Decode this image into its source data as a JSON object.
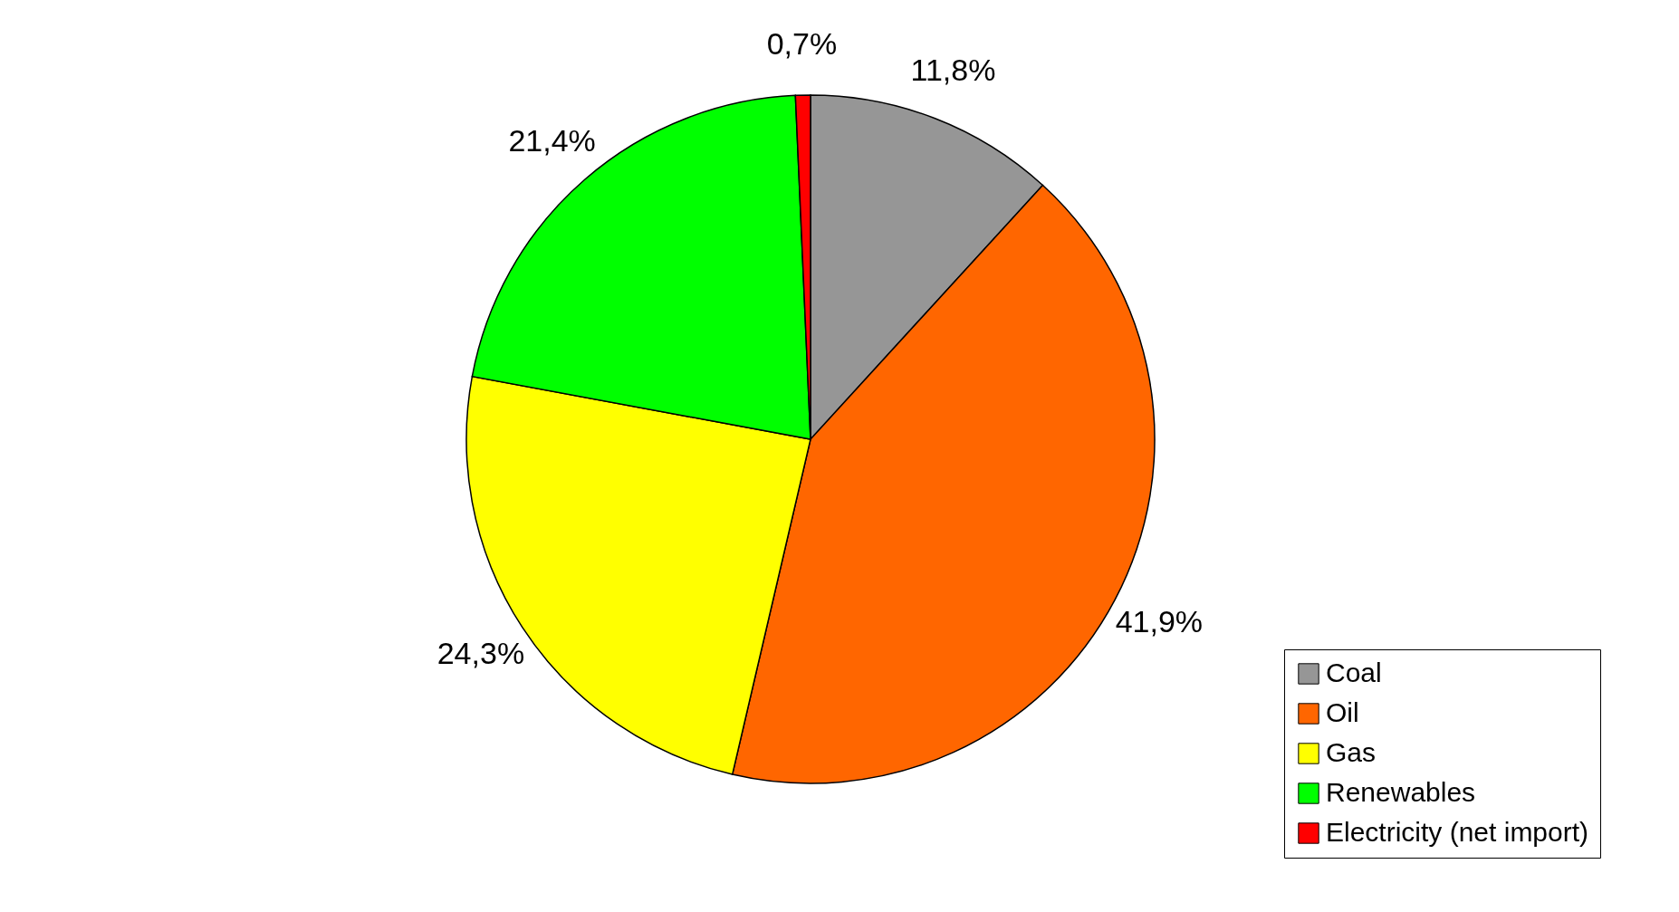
{
  "chart_data": {
    "type": "pie",
    "categories": [
      "Coal",
      "Oil",
      "Gas",
      "Renewables",
      "Electricity (net import)"
    ],
    "values": [
      11.8,
      41.9,
      24.3,
      21.4,
      0.7
    ],
    "colors": [
      "#969696",
      "#ff6600",
      "#ffff00",
      "#00ff00",
      "#ff0000"
    ],
    "value_labels": [
      "11,8%",
      "41,9%",
      "24,3%",
      "21,4%",
      "0,7%"
    ],
    "legend": "bottom right"
  }
}
